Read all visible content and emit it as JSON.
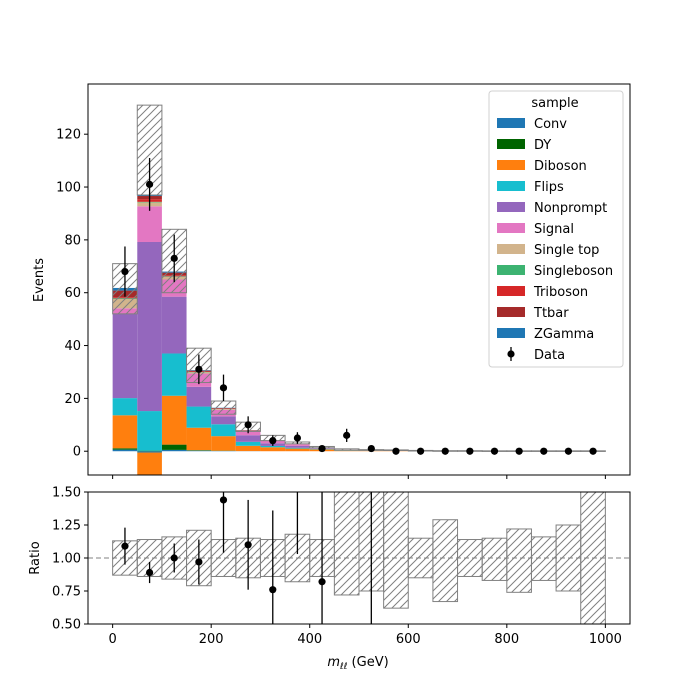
{
  "chart_data": [
    {
      "type": "bar",
      "stacked": true,
      "ylabel": "Events",
      "xlim": [
        -50,
        1050
      ],
      "ylim": [
        -9,
        139
      ],
      "yticks": [
        0,
        20,
        40,
        60,
        80,
        100,
        120
      ],
      "bin_edges": [
        0,
        50,
        100,
        150,
        200,
        250,
        300,
        350,
        400,
        450,
        500,
        550,
        600,
        650,
        700,
        750,
        800,
        850,
        900,
        950,
        1000
      ],
      "legend": {
        "title": "sample",
        "placement": "top-right"
      },
      "series": [
        {
          "name": "Conv",
          "color": "#1f77b4",
          "values": [
            0.6,
            -0.5,
            0.5,
            0.2,
            0.1,
            0.05,
            0,
            0,
            0,
            0,
            0,
            0,
            0,
            0,
            0,
            0,
            0,
            0,
            0,
            0
          ]
        },
        {
          "name": "DY",
          "color": "#006400",
          "values": [
            0.5,
            0.2,
            2.0,
            0.2,
            0.1,
            0,
            0,
            0,
            0,
            0,
            0,
            0,
            0,
            0,
            0,
            0,
            0,
            0,
            0,
            0
          ]
        },
        {
          "name": "Diboson",
          "color": "#ff7f0e",
          "values": [
            12.5,
            -8.5,
            18.5,
            8.5,
            5.5,
            2.0,
            1.5,
            1.0,
            0.7,
            0.2,
            0.2,
            0.2,
            0.1,
            0.1,
            0.1,
            0.1,
            0.1,
            0.1,
            0.1,
            0.1
          ]
        },
        {
          "name": "Flips",
          "color": "#17becf",
          "values": [
            6.5,
            15.0,
            16.0,
            8.0,
            4.5,
            1.5,
            0.5,
            0.3,
            0.2,
            0.1,
            0.05,
            0,
            0,
            0,
            0,
            0,
            0,
            0,
            0,
            0
          ]
        },
        {
          "name": "Nonprompt",
          "color": "#9467bd",
          "values": [
            32.0,
            64.0,
            21.5,
            7.5,
            3.0,
            2.5,
            1.0,
            0.7,
            0.2,
            0.1,
            0.1,
            0.1,
            0,
            0,
            0,
            0,
            0,
            0,
            0,
            0
          ]
        },
        {
          "name": "Signal",
          "color": "#e377c2",
          "values": [
            2.0,
            13.5,
            6.5,
            5.0,
            2.5,
            1.5,
            1.0,
            0.6,
            0.3,
            0.1,
            0.1,
            0.1,
            0.1,
            0.05,
            0.05,
            0.05,
            0,
            0,
            0,
            0
          ]
        },
        {
          "name": "Single top",
          "color": "#d2b48c",
          "values": [
            3.5,
            1.5,
            1.0,
            0.5,
            0.3,
            0.2,
            0.1,
            0.1,
            0,
            0,
            0,
            0,
            0,
            0,
            0,
            0,
            0,
            0,
            0,
            0
          ]
        },
        {
          "name": "Singleboson",
          "color": "#3cb371",
          "values": [
            0.3,
            0.2,
            0.2,
            0.1,
            0.05,
            0,
            0,
            0,
            0,
            0,
            0,
            0,
            0,
            0,
            0,
            0,
            0,
            0,
            0,
            0
          ]
        },
        {
          "name": "Triboson",
          "color": "#d62728",
          "values": [
            0.4,
            1.0,
            0.4,
            0.2,
            0.1,
            0.1,
            0,
            0,
            0,
            0,
            0,
            0,
            0,
            0,
            0,
            0,
            0,
            0,
            0,
            0
          ]
        },
        {
          "name": "Ttbar",
          "color": "#a52a2a",
          "values": [
            2.5,
            1.2,
            1.0,
            0.3,
            0.2,
            0.1,
            0.05,
            0,
            0,
            0,
            0,
            0,
            0,
            0,
            0,
            0,
            0,
            0,
            0,
            0
          ]
        },
        {
          "name": "ZGamma",
          "color": "#1f77b4",
          "values": [
            1.0,
            0.5,
            0.4,
            0.2,
            0.1,
            0.05,
            0,
            0,
            0,
            0,
            0,
            0,
            0,
            0,
            0,
            0,
            0,
            0,
            0,
            0
          ]
        }
      ],
      "uncertainty_band": {
        "low": [
          52.0,
          97.0,
          60.0,
          26.0,
          14.0,
          7.5,
          4.0,
          2.8,
          1.3,
          0.4,
          0.35,
          0.3,
          0.15,
          0.1,
          0.1,
          0.1,
          0.1,
          0.1,
          0.1,
          0.1
        ],
        "high": [
          71.0,
          131.0,
          84.0,
          39.0,
          19.0,
          11.0,
          6.0,
          3.5,
          1.8,
          0.9,
          0.6,
          0.5,
          0.3,
          0.2,
          0.2,
          0.15,
          0.15,
          0.15,
          0.15,
          0.15
        ]
      },
      "data_series": {
        "name": "Data",
        "x": [
          25,
          75,
          125,
          175,
          225,
          275,
          325,
          375,
          425,
          475,
          525,
          575,
          625,
          675,
          725,
          775,
          825,
          875,
          925,
          975
        ],
        "y": [
          68,
          101,
          73,
          31,
          24,
          10,
          4,
          5,
          1,
          6,
          1,
          0,
          0,
          0,
          0,
          0,
          0,
          0,
          0,
          0
        ],
        "yerr": [
          9.5,
          10.0,
          9.0,
          5.6,
          5.0,
          3.2,
          2.0,
          2.2,
          1.0,
          2.5,
          1.0,
          0,
          0,
          0,
          0,
          0,
          0,
          0,
          0,
          0
        ]
      }
    },
    {
      "type": "scatter",
      "ylabel": "Ratio",
      "xlabel_main": "m",
      "xlabel_sub": "ℓℓ",
      "xlabel_unit": " (GeV)",
      "xlim": [
        -50,
        1050
      ],
      "ylim": [
        0.5,
        1.5
      ],
      "xticks": [
        0,
        200,
        400,
        600,
        800,
        1000
      ],
      "yticks": [
        0.5,
        0.75,
        1.0,
        1.25,
        1.5
      ],
      "ytick_labels": [
        "0.50",
        "0.75",
        "1.00",
        "1.25",
        "1.50"
      ],
      "reference_line": 1.0,
      "bin_edges": [
        0,
        50,
        100,
        150,
        200,
        250,
        300,
        350,
        400,
        450,
        500,
        550,
        600,
        650,
        700,
        750,
        800,
        850,
        900,
        950,
        1000
      ],
      "uncertainty_band": {
        "low": [
          0.87,
          0.86,
          0.84,
          0.79,
          0.86,
          0.85,
          0.86,
          0.82,
          0.86,
          0.72,
          0.75,
          0.62,
          0.85,
          0.67,
          0.86,
          0.83,
          0.74,
          0.83,
          0.75,
          0.5
        ],
        "high": [
          1.13,
          1.14,
          1.16,
          1.21,
          1.14,
          1.15,
          1.14,
          1.18,
          1.14,
          1.5,
          1.5,
          1.5,
          1.15,
          1.29,
          1.14,
          1.15,
          1.22,
          1.16,
          1.25,
          1.5
        ]
      },
      "points": {
        "x": [
          25,
          75,
          125,
          175,
          225,
          275,
          325,
          375,
          425,
          525
        ],
        "y": [
          1.09,
          0.89,
          1.0,
          0.97,
          1.44,
          1.1,
          0.76,
          1.5,
          0.82,
          1.5
        ],
        "yerr_low": [
          0.14,
          0.08,
          0.11,
          0.17,
          0.4,
          0.34,
          0.5,
          0.47,
          0.82,
          1.0
        ],
        "yerr_high": [
          0.14,
          0.08,
          0.11,
          0.17,
          0.4,
          0.34,
          0.6,
          0.5,
          0.82,
          1.0
        ]
      }
    }
  ]
}
